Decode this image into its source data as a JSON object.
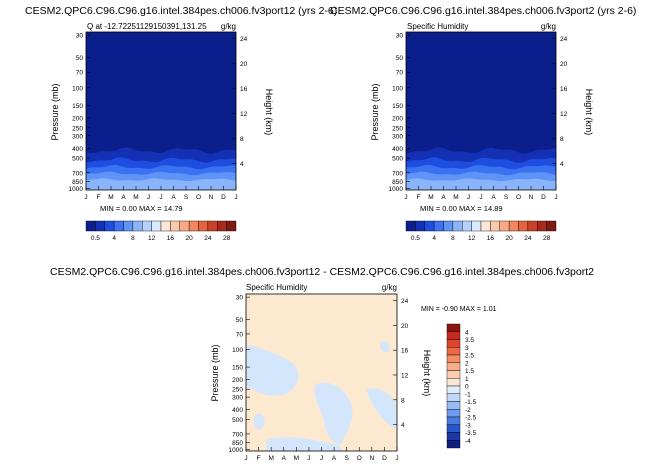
{
  "months": [
    "J",
    "F",
    "M",
    "A",
    "M",
    "J",
    "J",
    "A",
    "S",
    "O",
    "N",
    "D",
    "J"
  ],
  "colors": {
    "deep_blue": "#0a1e8c",
    "cream": "#fde8d0",
    "light_blue": "#d4e6fb"
  },
  "chart_data": [
    {
      "type": "contour",
      "title": "CESM2.QPC6.C96.C96.g16.intel.384pes.ch006.fv3port12 (yrs 2-6)",
      "subtitle": "Q at -12.72251129150391,131.25",
      "units": "g/kg",
      "ylabel": "Pressure (mb)",
      "ylabel_right": "Height (km)",
      "y_ticks": [
        "30",
        "50",
        "70",
        "100",
        "150",
        "200",
        "250",
        "300",
        "400",
        "500",
        "700",
        "850",
        "1000"
      ],
      "y_ticks_right": [
        "24",
        "20",
        "16",
        "12",
        "8",
        "4"
      ],
      "x_ticks": [
        "J",
        "F",
        "M",
        "A",
        "M",
        "J",
        "J",
        "A",
        "S",
        "O",
        "N",
        "D",
        "J"
      ],
      "stats": "MIN =   0.00 MAX =   14.79",
      "colorbar": {
        "orientation": "horizontal",
        "labels": [
          "0.5",
          "4",
          "8",
          "12",
          "16",
          "20",
          "24",
          "28"
        ],
        "colors": [
          "#0a1e8c",
          "#1430b4",
          "#1e4ee0",
          "#3a72f2",
          "#5f94f7",
          "#8ab4fa",
          "#b6d2fc",
          "#dbe9fd",
          "#fbe6d8",
          "#fbcaad",
          "#f8a983",
          "#f2865d",
          "#e4623d",
          "#c8432a",
          "#a42a1e",
          "#7e1a14"
        ]
      },
      "bands_fraction_of_height": [
        0.75,
        0.8,
        0.84,
        0.88,
        0.92
      ]
    },
    {
      "type": "contour",
      "title": "CESM2.QPC6.C96.C96.g16.intel.384pes.ch006.fv3port2 (yrs 2-6)",
      "subtitle": "Specific Humidity",
      "units": "g/kg",
      "ylabel": "Pressure (mb)",
      "ylabel_right": "Height (km)",
      "y_ticks": [
        "30",
        "50",
        "70",
        "100",
        "150",
        "200",
        "250",
        "300",
        "400",
        "500",
        "700",
        "850",
        "1000"
      ],
      "y_ticks_right": [
        "24",
        "20",
        "16",
        "12",
        "8",
        "4"
      ],
      "x_ticks": [
        "J",
        "F",
        "M",
        "A",
        "M",
        "J",
        "J",
        "A",
        "S",
        "O",
        "N",
        "D",
        "J"
      ],
      "stats": "MIN =   0.00 MAX =   14.89",
      "colorbar": {
        "orientation": "horizontal",
        "labels": [
          "0.5",
          "4",
          "8",
          "12",
          "16",
          "20",
          "24",
          "28"
        ],
        "colors": [
          "#0a1e8c",
          "#1430b4",
          "#1e4ee0",
          "#3a72f2",
          "#5f94f7",
          "#8ab4fa",
          "#b6d2fc",
          "#dbe9fd",
          "#fbe6d8",
          "#fbcaad",
          "#f8a983",
          "#f2865d",
          "#e4623d",
          "#c8432a",
          "#a42a1e",
          "#7e1a14"
        ]
      }
    },
    {
      "type": "contour",
      "title": "CESM2.QPC6.C96.C96.g16.intel.384pes.ch006.fv3port12 - CESM2.QPC6.C96.C96.g16.intel.384pes.ch006.fv3port2",
      "subtitle": "Specific Humidity",
      "units": "g/kg",
      "ylabel": "Pressure (mb)",
      "ylabel_right": "Height (km)",
      "y_ticks": [
        "30",
        "50",
        "70",
        "100",
        "150",
        "200",
        "250",
        "300",
        "400",
        "500",
        "700",
        "850",
        "1000"
      ],
      "y_ticks_right": [
        "24",
        "20",
        "16",
        "12",
        "8",
        "4"
      ],
      "x_ticks": [
        "J",
        "F",
        "M",
        "A",
        "M",
        "J",
        "J",
        "A",
        "S",
        "O",
        "N",
        "D",
        "J"
      ],
      "stats": "MIN =   -0.90 MAX =    1.01",
      "colorbar": {
        "orientation": "vertical",
        "labels": [
          "4",
          "3.5",
          "3",
          "2.5",
          "2",
          "1.5",
          "1",
          "0",
          "-1",
          "-1.5",
          "-2",
          "-2.5",
          "-3",
          "-3.5",
          "-4"
        ],
        "colors": [
          "#8e1414",
          "#c62a1e",
          "#e0462c",
          "#ec6a44",
          "#f48e63",
          "#f8ae8a",
          "#fbcdb1",
          "#fde8d6",
          "#e1ecfb",
          "#c0d7f8",
          "#98bcf4",
          "#6e9cee",
          "#4a7be2",
          "#2a56cc",
          "#1a36a8",
          "#0e1f80"
        ]
      }
    }
  ]
}
